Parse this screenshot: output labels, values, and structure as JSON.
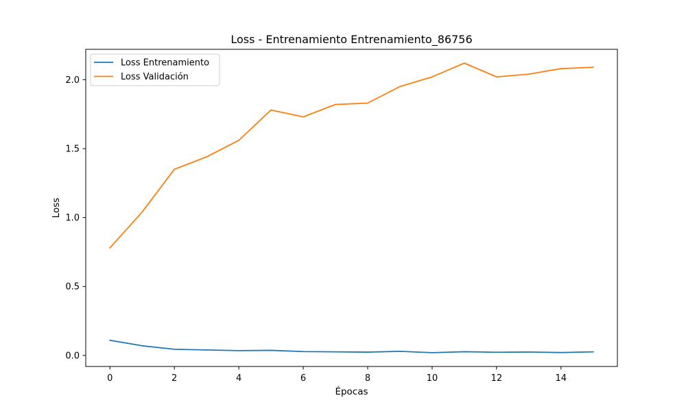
{
  "chart_data": {
    "type": "line",
    "title": "Loss - Entrenamiento Entrenamiento_86756",
    "xlabel": "Épocas",
    "ylabel": "Loss",
    "x": [
      0,
      1,
      2,
      3,
      4,
      5,
      6,
      7,
      8,
      9,
      10,
      11,
      12,
      13,
      14,
      15
    ],
    "xlim": [
      -0.75,
      15.75
    ],
    "ylim": [
      -0.08,
      2.22
    ],
    "xticks": [
      0,
      2,
      4,
      6,
      8,
      10,
      12,
      14
    ],
    "yticks": [
      0.0,
      0.5,
      1.0,
      1.5,
      2.0
    ],
    "xtick_labels": [
      "0",
      "2",
      "4",
      "6",
      "8",
      "10",
      "12",
      "14"
    ],
    "ytick_labels": [
      "0.0",
      "0.5",
      "1.0",
      "1.5",
      "2.0"
    ],
    "grid": false,
    "legend_position": "top-left",
    "series": [
      {
        "name": "Loss Entrenamiento",
        "color": "#1f77b4",
        "values": [
          0.11,
          0.07,
          0.045,
          0.04,
          0.035,
          0.037,
          0.028,
          0.026,
          0.024,
          0.03,
          0.02,
          0.027,
          0.023,
          0.025,
          0.021,
          0.026
        ]
      },
      {
        "name": "Loss Validación",
        "color": "#ff7f0e",
        "values": [
          0.78,
          1.04,
          1.35,
          1.44,
          1.56,
          1.78,
          1.73,
          1.82,
          1.83,
          1.95,
          2.02,
          2.12,
          2.02,
          2.04,
          2.08,
          2.09
        ]
      }
    ]
  }
}
